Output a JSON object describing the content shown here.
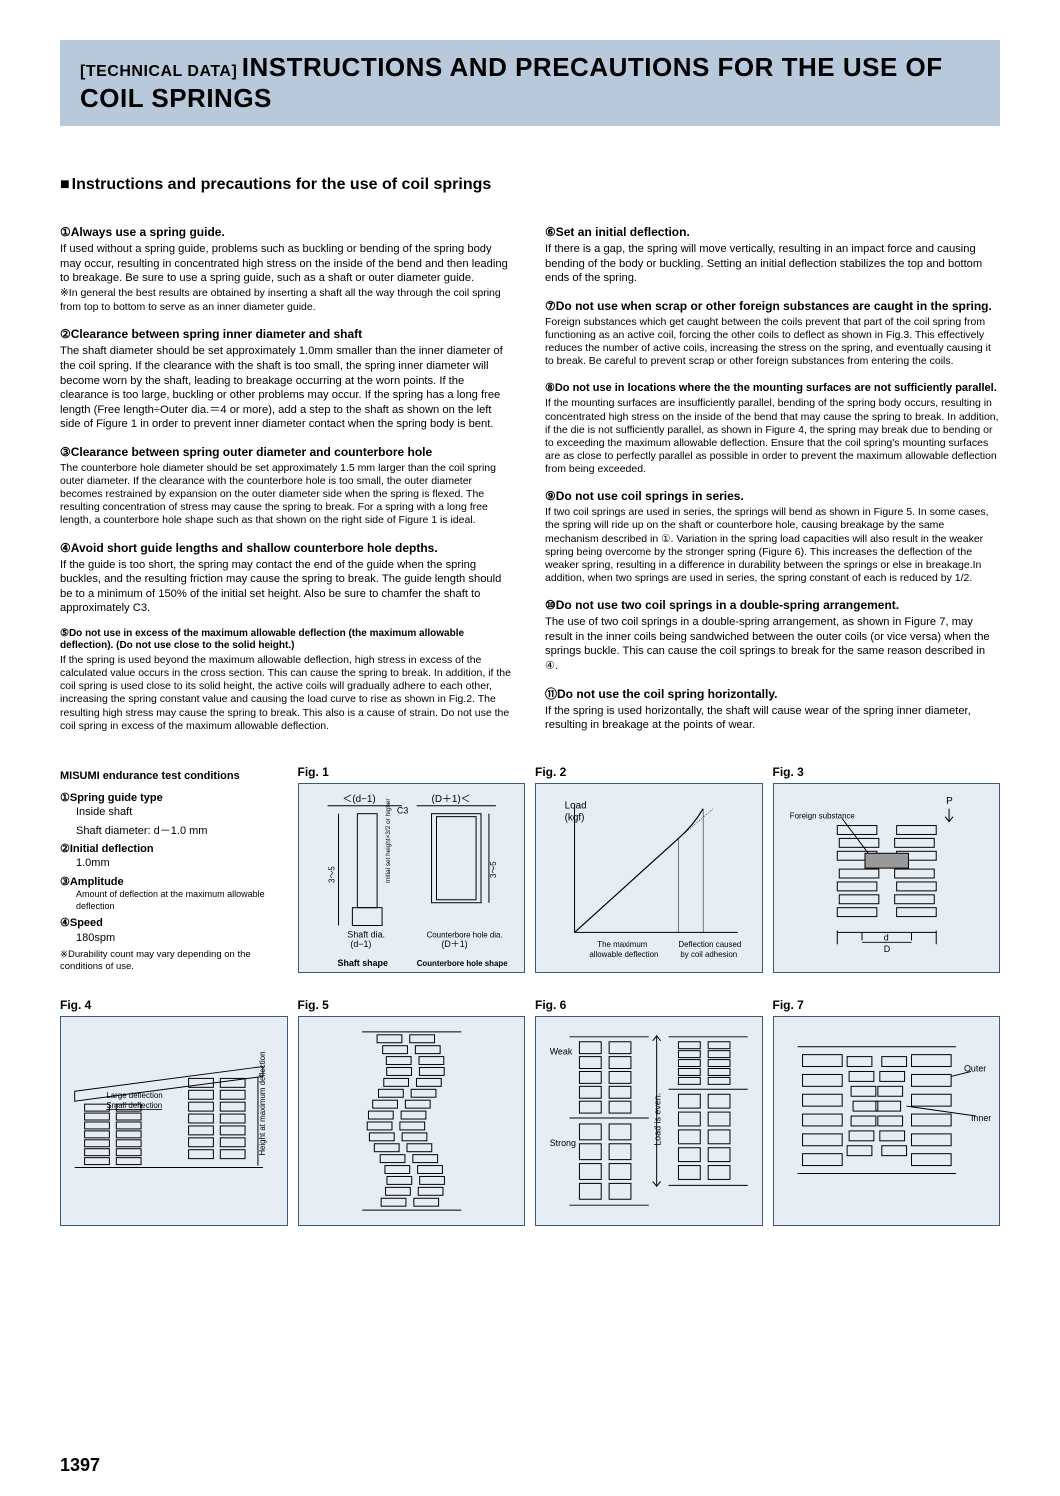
{
  "header": {
    "tech": "[TECHNICAL DATA]",
    "title": "INSTRUCTIONS AND PRECAUTIONS FOR THE USE OF COIL SPRINGS"
  },
  "section_title": "Instructions and precautions for the use of coil springs",
  "left_items": [
    {
      "num": "①",
      "title": "Always use a spring guide.",
      "body": "If used without a spring guide, problems such as buckling or bending of the spring body may occur, resulting in concentrated high stress on the inside of the bend and then leading to breakage. Be sure to use a spring guide, such as a shaft or outer diameter guide.",
      "note": "※In general the best results are obtained by inserting a shaft all the way through the coil spring from top to bottom to serve as an inner diameter guide."
    },
    {
      "num": "②",
      "title": "Clearance between spring inner diameter and shaft",
      "body": "The shaft diameter should be set approximately 1.0mm smaller than the inner diameter of the coil spring. If the clearance with the shaft is too small, the spring inner diameter will become worn by the shaft, leading to breakage occurring at the worn points. If the clearance is too large, buckling or other problems may occur. If the spring has a long free length (Free length÷Outer dia.＝4 or more), add a step to the shaft as shown on the left side of Figure 1 in order to prevent inner diameter contact when the spring body is bent."
    },
    {
      "num": "③",
      "title": "Clearance between spring outer diameter and counterbore hole",
      "body": "The counterbore hole diameter should be set approximately 1.5 mm larger than the coil spring outer diameter. If the clearance with the counterbore hole is too small, the outer diameter becomes restrained by expansion on the outer diameter side when the spring is flexed. The resulting concentration of stress may cause the spring to break. For a spring with a long free length, a counterbore hole shape such as that shown on the right side of Figure 1 is ideal.",
      "small": true
    },
    {
      "num": "④",
      "title": "Avoid short guide lengths and shallow counterbore hole depths.",
      "body": "If the guide is too short, the spring may contact the end of the guide when the spring buckles, and the resulting friction may cause the spring to break. The guide length should be to a minimum of 150% of the initial set height. Also be sure to chamfer the shaft to approximately C3."
    },
    {
      "num": "⑤",
      "title": "Do not use in excess of the maximum allowable deflection (the maximum allowable deflection). (Do not use close to the solid height.)",
      "title_small": true,
      "body": "If the spring is used beyond the maximum allowable deflection, high stress in excess of the calculated value occurs in the cross section. This can cause the spring to break. In addition, if the coil spring is used close to its solid height, the active coils will gradually adhere to each other, increasing the spring constant value and causing the load curve to rise as shown in Fig.2. The resulting high stress may cause the spring to break. This also is a cause of strain. Do not use the coil spring in excess of the maximum allowable deflection.",
      "small": true
    }
  ],
  "right_items": [
    {
      "num": "⑥",
      "title": "Set an initial deflection.",
      "body": "If there is a gap, the spring will move vertically, resulting in an impact force and causing bending of the body or buckling. Setting an initial deflection stabilizes the top and bottom ends of the spring."
    },
    {
      "num": "⑦",
      "title": "Do not use when scrap or other foreign substances are caught in the spring.",
      "body": "Foreign substances which get caught between the coils prevent that part of the coil spring from functioning as an active coil, forcing the other coils to deflect as shown in Fig.3. This effectively reduces the number of active coils, increasing the stress on the spring, and eventually causing it to break. Be careful to prevent scrap or other foreign substances from entering the coils.",
      "small": true
    },
    {
      "num": "⑧",
      "title": "Do not use in locations where the the mounting surfaces are not sufficiently parallel.",
      "title_size": "11px",
      "body": "If the mounting surfaces are insufficiently parallel, bending of the spring body occurs, resulting in concentrated high stress on the inside of the bend that may cause the spring to break. In addition, if the die is not sufficiently parallel, as shown in Figure 4, the spring may break due to bending or to exceeding the maximum allowable deflection. Ensure that the coil spring's mounting surfaces are as close to perfectly parallel as possible in order to prevent the maximum allowable deflection from being exceeded.",
      "small": true
    },
    {
      "num": "⑨",
      "title": "Do not use coil springs in series.",
      "body": "If two coil springs are used in series, the springs will bend as shown in Figure 5. In some cases, the spring will ride up on the shaft or counterbore hole, causing breakage by the same mechanism described in ①. Variation in the spring load capacities will also result in the weaker spring being overcome by the stronger spring (Figure 6). This increases the deflection of the weaker spring, resulting in a difference in durability between the springs or else in breakage.In addition, when two springs are used in series, the spring constant of each is reduced by 1/2.",
      "small": true
    },
    {
      "num": "⑩",
      "title": "Do not use two coil springs in a double-spring arrangement.",
      "body": "The use of two coil springs in a double-spring arrangement, as shown in Figure 7, may result in the inner coils being sandwiched between the outer coils (or vice versa) when the springs buckle. This can cause the coil springs to break for the same reason described in ④."
    },
    {
      "num": "⑪",
      "title": "Do not use the coil spring horizontally.",
      "body": "If the spring is used horizontally, the shaft will cause wear of the spring inner diameter, resulting in breakage at the points of wear."
    }
  ],
  "test_conditions": {
    "heading": "MISUMI endurance test conditions",
    "items": [
      {
        "num": "①",
        "label": "Spring guide type",
        "sub": "Inside shaft",
        "val": "Shaft diameter: d－1.0 mm"
      },
      {
        "num": "②",
        "label": "Initial deflection",
        "val": "1.0mm"
      },
      {
        "num": "③",
        "label": "Amplitude",
        "val": "Amount of deflection at the maximum allowable deflection",
        "val_small": true
      },
      {
        "num": "④",
        "label": "Speed",
        "val": "180spm"
      }
    ],
    "note": "※Durability count may vary depending on the conditions of use."
  },
  "figs": {
    "f1": {
      "title": "Fig. 1",
      "sub1": "Shaft shape",
      "sub2": "Counterbore hole shape",
      "lbl_shaft": "Shaft dia.",
      "lbl_d1": "(d−1)",
      "lbl_cb": "Counterbore hole dia.",
      "lbl_D1": "(D＋1)",
      "top1": "＜(d−1)",
      "top2": "(D＋1)＜",
      "c3": "C3",
      "h35": "3～5",
      "setl": "Initial set height×3/2 or higher"
    },
    "f2": {
      "title": "Fig. 2",
      "load": "Load",
      "kgf": "(kgf)",
      "x1": "The maximum",
      "x1b": "allowable deflection",
      "x2": "Deflection caused",
      "x2b": "by coil adhesion"
    },
    "f3": {
      "title": "Fig. 3",
      "p": "P",
      "foreign": "Foreign substance",
      "d": "d",
      "D": "D"
    },
    "f4": {
      "title": "Fig. 4",
      "large": "Large deflection",
      "small": "Small deflection",
      "h": "Height at maximum deflection"
    },
    "f5": {
      "title": "Fig. 5"
    },
    "f6": {
      "title": "Fig. 6",
      "weak": "Weak",
      "strong": "Strong",
      "load": "Load is even."
    },
    "f7": {
      "title": "Fig. 7",
      "outer": "Outer",
      "inner": "Inner"
    }
  },
  "page_num": "1397",
  "colors": {
    "bg": "#e6edf3",
    "border": "#3a5a7c",
    "header": "#b8c9dc"
  }
}
